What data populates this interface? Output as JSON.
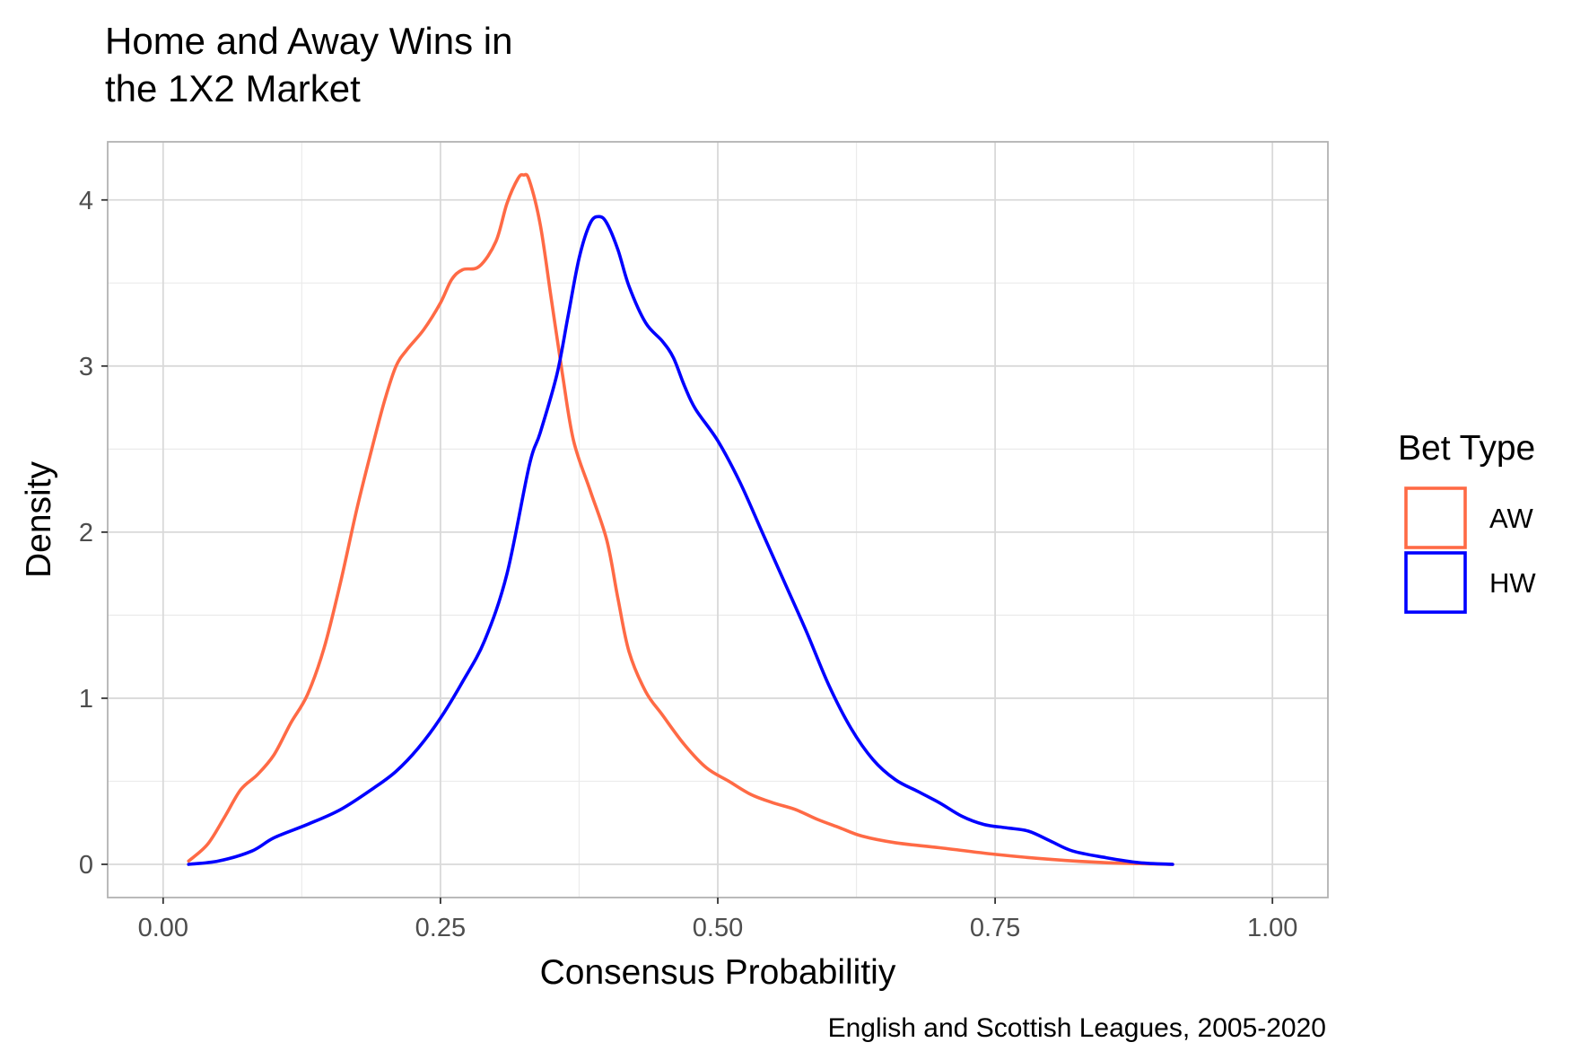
{
  "chart_data": {
    "type": "line",
    "title_lines": [
      "Home and Away Wins in",
      "the 1X2 Market"
    ],
    "xlabel": "Consensus Probabilitiy",
    "ylabel": "Density",
    "caption": "English and Scottish Leagues, 2005-2020",
    "xlim": [
      -0.05,
      1.05
    ],
    "ylim": [
      -0.2,
      4.35
    ],
    "x_ticks": [
      0.0,
      0.25,
      0.5,
      0.75,
      1.0
    ],
    "x_tick_labels": [
      "0.00",
      "0.25",
      "0.50",
      "0.75",
      "1.00"
    ],
    "y_ticks": [
      0,
      1,
      2,
      3,
      4
    ],
    "y_tick_labels": [
      "0",
      "1",
      "2",
      "3",
      "4"
    ],
    "grid": true,
    "legend": {
      "title": "Bet Type",
      "position": "right"
    },
    "series": [
      {
        "name": "AW",
        "color": "#FF6A45",
        "points": [
          [
            0.023,
            0.02
          ],
          [
            0.04,
            0.12
          ],
          [
            0.055,
            0.28
          ],
          [
            0.07,
            0.45
          ],
          [
            0.085,
            0.54
          ],
          [
            0.1,
            0.66
          ],
          [
            0.115,
            0.85
          ],
          [
            0.13,
            1.02
          ],
          [
            0.145,
            1.3
          ],
          [
            0.16,
            1.7
          ],
          [
            0.175,
            2.15
          ],
          [
            0.19,
            2.55
          ],
          [
            0.2,
            2.8
          ],
          [
            0.21,
            3.0
          ],
          [
            0.22,
            3.1
          ],
          [
            0.235,
            3.22
          ],
          [
            0.25,
            3.38
          ],
          [
            0.26,
            3.52
          ],
          [
            0.27,
            3.58
          ],
          [
            0.285,
            3.6
          ],
          [
            0.3,
            3.75
          ],
          [
            0.31,
            3.98
          ],
          [
            0.32,
            4.13
          ],
          [
            0.325,
            4.15
          ],
          [
            0.33,
            4.12
          ],
          [
            0.34,
            3.85
          ],
          [
            0.35,
            3.4
          ],
          [
            0.36,
            2.95
          ],
          [
            0.37,
            2.55
          ],
          [
            0.385,
            2.25
          ],
          [
            0.4,
            1.95
          ],
          [
            0.41,
            1.6
          ],
          [
            0.42,
            1.28
          ],
          [
            0.435,
            1.04
          ],
          [
            0.45,
            0.9
          ],
          [
            0.47,
            0.72
          ],
          [
            0.49,
            0.58
          ],
          [
            0.51,
            0.5
          ],
          [
            0.53,
            0.42
          ],
          [
            0.55,
            0.37
          ],
          [
            0.57,
            0.33
          ],
          [
            0.59,
            0.27
          ],
          [
            0.61,
            0.22
          ],
          [
            0.63,
            0.17
          ],
          [
            0.66,
            0.13
          ],
          [
            0.7,
            0.1
          ],
          [
            0.75,
            0.06
          ],
          [
            0.8,
            0.03
          ],
          [
            0.85,
            0.01
          ],
          [
            0.91,
            0.0
          ]
        ]
      },
      {
        "name": "HW",
        "color": "#0000FF",
        "points": [
          [
            0.023,
            0.0
          ],
          [
            0.05,
            0.02
          ],
          [
            0.08,
            0.08
          ],
          [
            0.1,
            0.16
          ],
          [
            0.13,
            0.24
          ],
          [
            0.16,
            0.33
          ],
          [
            0.19,
            0.46
          ],
          [
            0.21,
            0.56
          ],
          [
            0.23,
            0.7
          ],
          [
            0.25,
            0.88
          ],
          [
            0.27,
            1.1
          ],
          [
            0.29,
            1.35
          ],
          [
            0.31,
            1.75
          ],
          [
            0.33,
            2.4
          ],
          [
            0.34,
            2.6
          ],
          [
            0.355,
            2.95
          ],
          [
            0.365,
            3.3
          ],
          [
            0.375,
            3.65
          ],
          [
            0.385,
            3.86
          ],
          [
            0.393,
            3.9
          ],
          [
            0.4,
            3.86
          ],
          [
            0.41,
            3.7
          ],
          [
            0.42,
            3.48
          ],
          [
            0.435,
            3.26
          ],
          [
            0.45,
            3.15
          ],
          [
            0.46,
            3.05
          ],
          [
            0.47,
            2.88
          ],
          [
            0.48,
            2.74
          ],
          [
            0.5,
            2.55
          ],
          [
            0.52,
            2.3
          ],
          [
            0.54,
            2.0
          ],
          [
            0.56,
            1.7
          ],
          [
            0.58,
            1.4
          ],
          [
            0.6,
            1.08
          ],
          [
            0.62,
            0.82
          ],
          [
            0.64,
            0.63
          ],
          [
            0.66,
            0.51
          ],
          [
            0.68,
            0.44
          ],
          [
            0.7,
            0.37
          ],
          [
            0.72,
            0.29
          ],
          [
            0.74,
            0.24
          ],
          [
            0.76,
            0.22
          ],
          [
            0.78,
            0.2
          ],
          [
            0.8,
            0.14
          ],
          [
            0.82,
            0.08
          ],
          [
            0.85,
            0.04
          ],
          [
            0.88,
            0.01
          ],
          [
            0.91,
            0.0
          ]
        ]
      }
    ]
  }
}
